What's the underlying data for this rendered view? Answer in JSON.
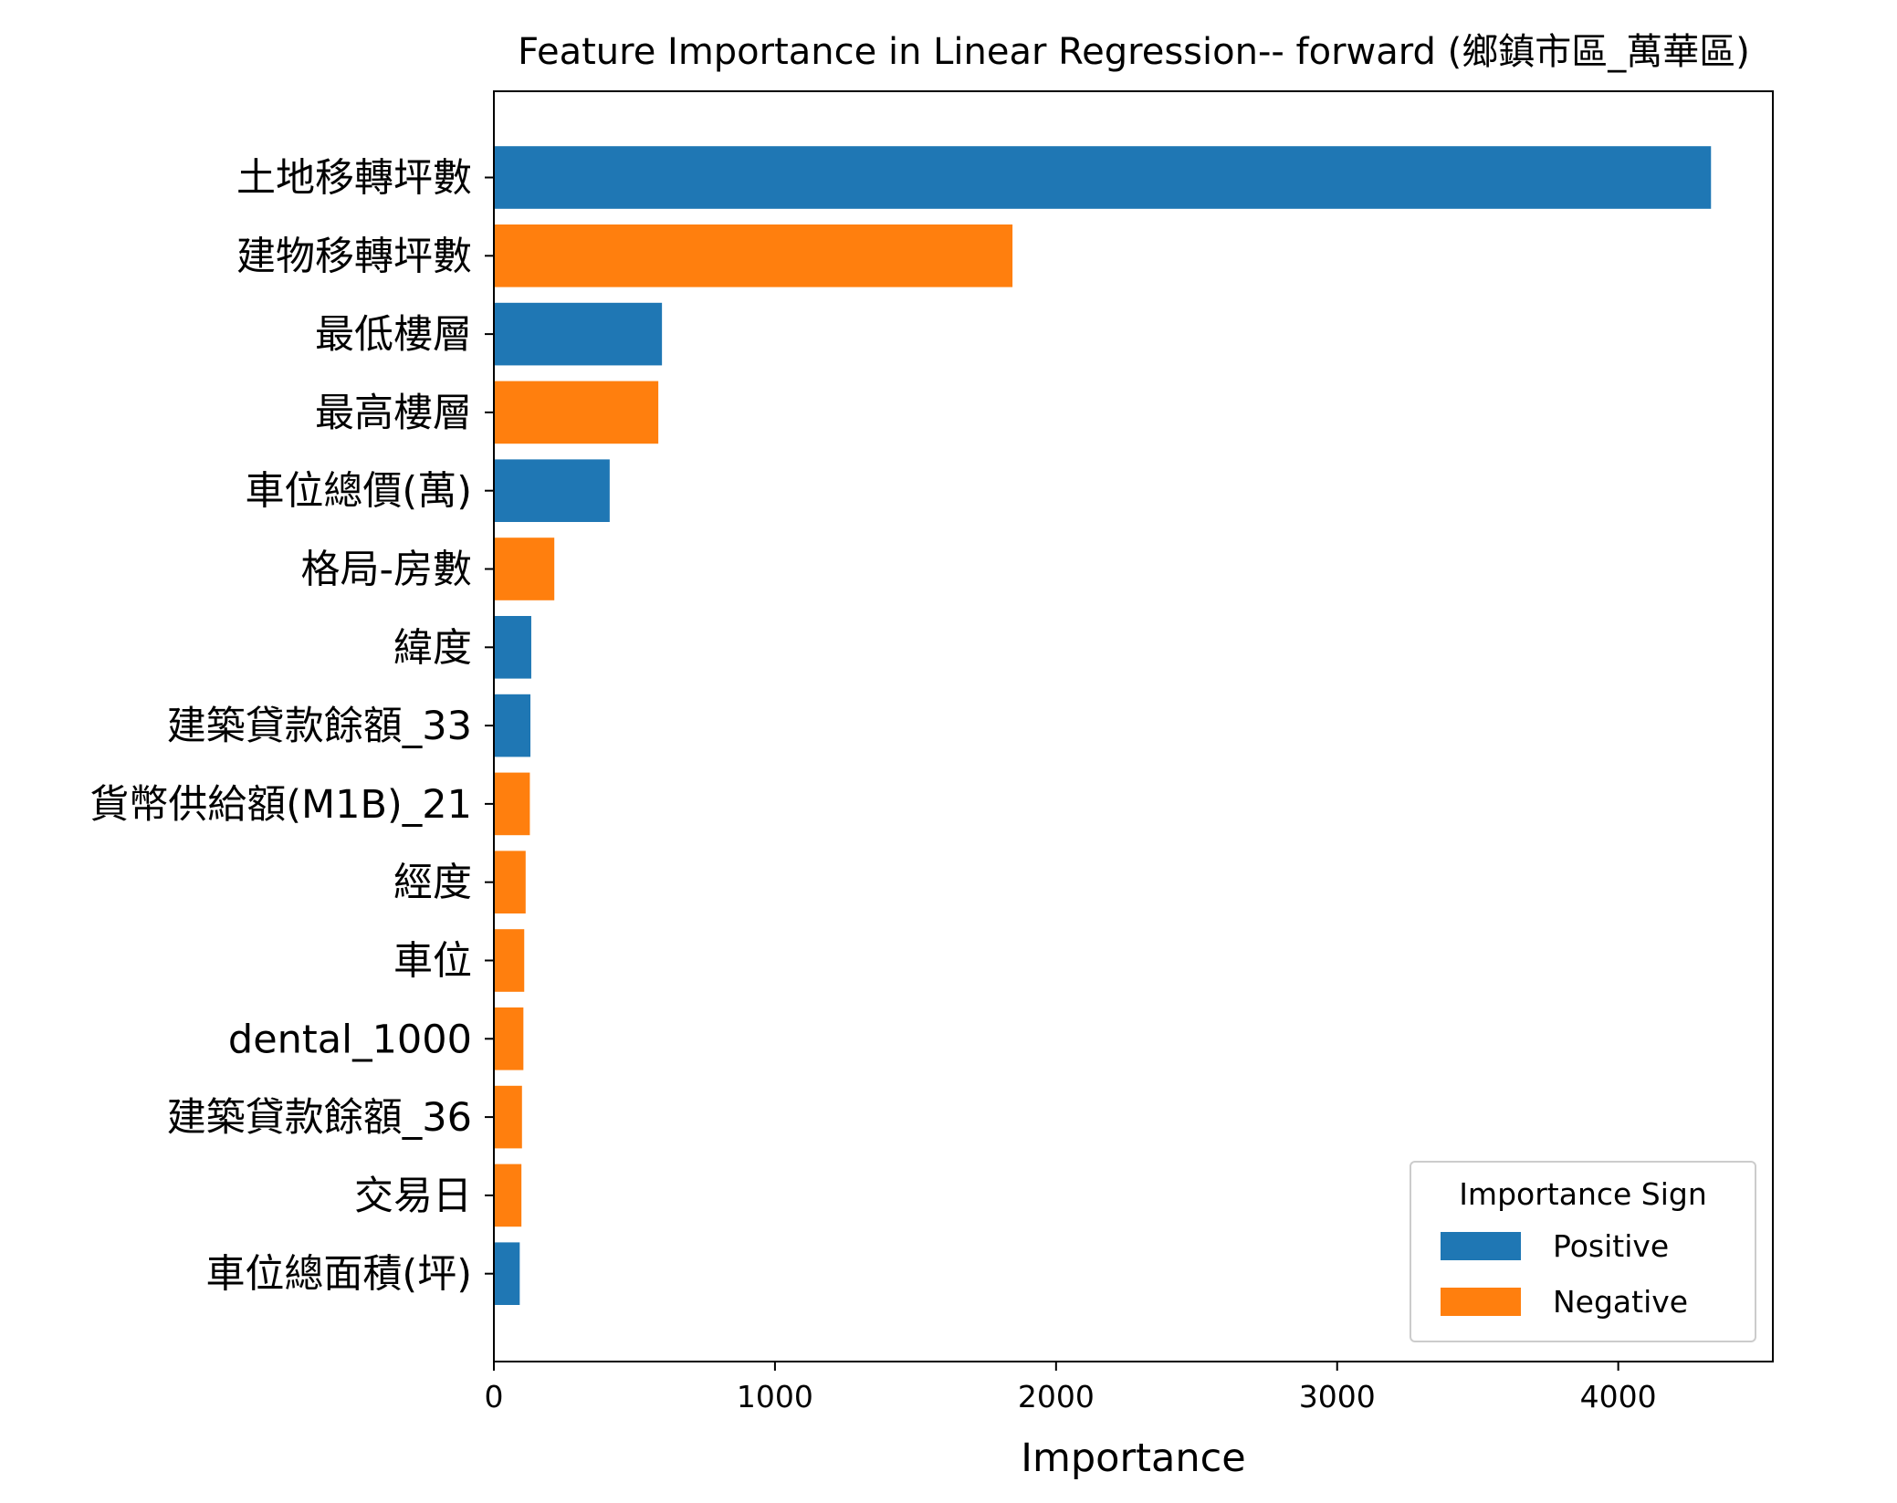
{
  "chart_data": {
    "type": "bar",
    "orientation": "horizontal",
    "title": "Feature Importance in Linear Regression-- forward (鄉鎮市區_萬華區)",
    "xlabel": "Importance",
    "ylabel": "",
    "xlim": [
      0,
      4550
    ],
    "xticks": [
      0,
      1000,
      2000,
      3000,
      4000
    ],
    "grid": false,
    "categories": [
      "土地移轉坪數",
      "建物移轉坪數",
      "最低樓層",
      "最高樓層",
      "車位總價(萬)",
      "格局-房數",
      "緯度",
      "建築貸款餘額_33",
      "貨幣供給額(M1B)_21",
      "經度",
      "車位",
      "dental_1000",
      "建築貸款餘額_36",
      "交易日",
      "車位總面積(坪)"
    ],
    "values": [
      4330,
      1845,
      598,
      585,
      412,
      215,
      133,
      130,
      128,
      113,
      108,
      105,
      100,
      98,
      92
    ],
    "signs": [
      "Positive",
      "Negative",
      "Positive",
      "Negative",
      "Positive",
      "Negative",
      "Positive",
      "Positive",
      "Negative",
      "Negative",
      "Negative",
      "Negative",
      "Negative",
      "Negative",
      "Positive"
    ],
    "legend": {
      "title": "Importance Sign",
      "position": "lower right",
      "entries": [
        {
          "label": "Positive",
          "color": "#1f77b4"
        },
        {
          "label": "Negative",
          "color": "#ff7f0e"
        }
      ]
    }
  }
}
